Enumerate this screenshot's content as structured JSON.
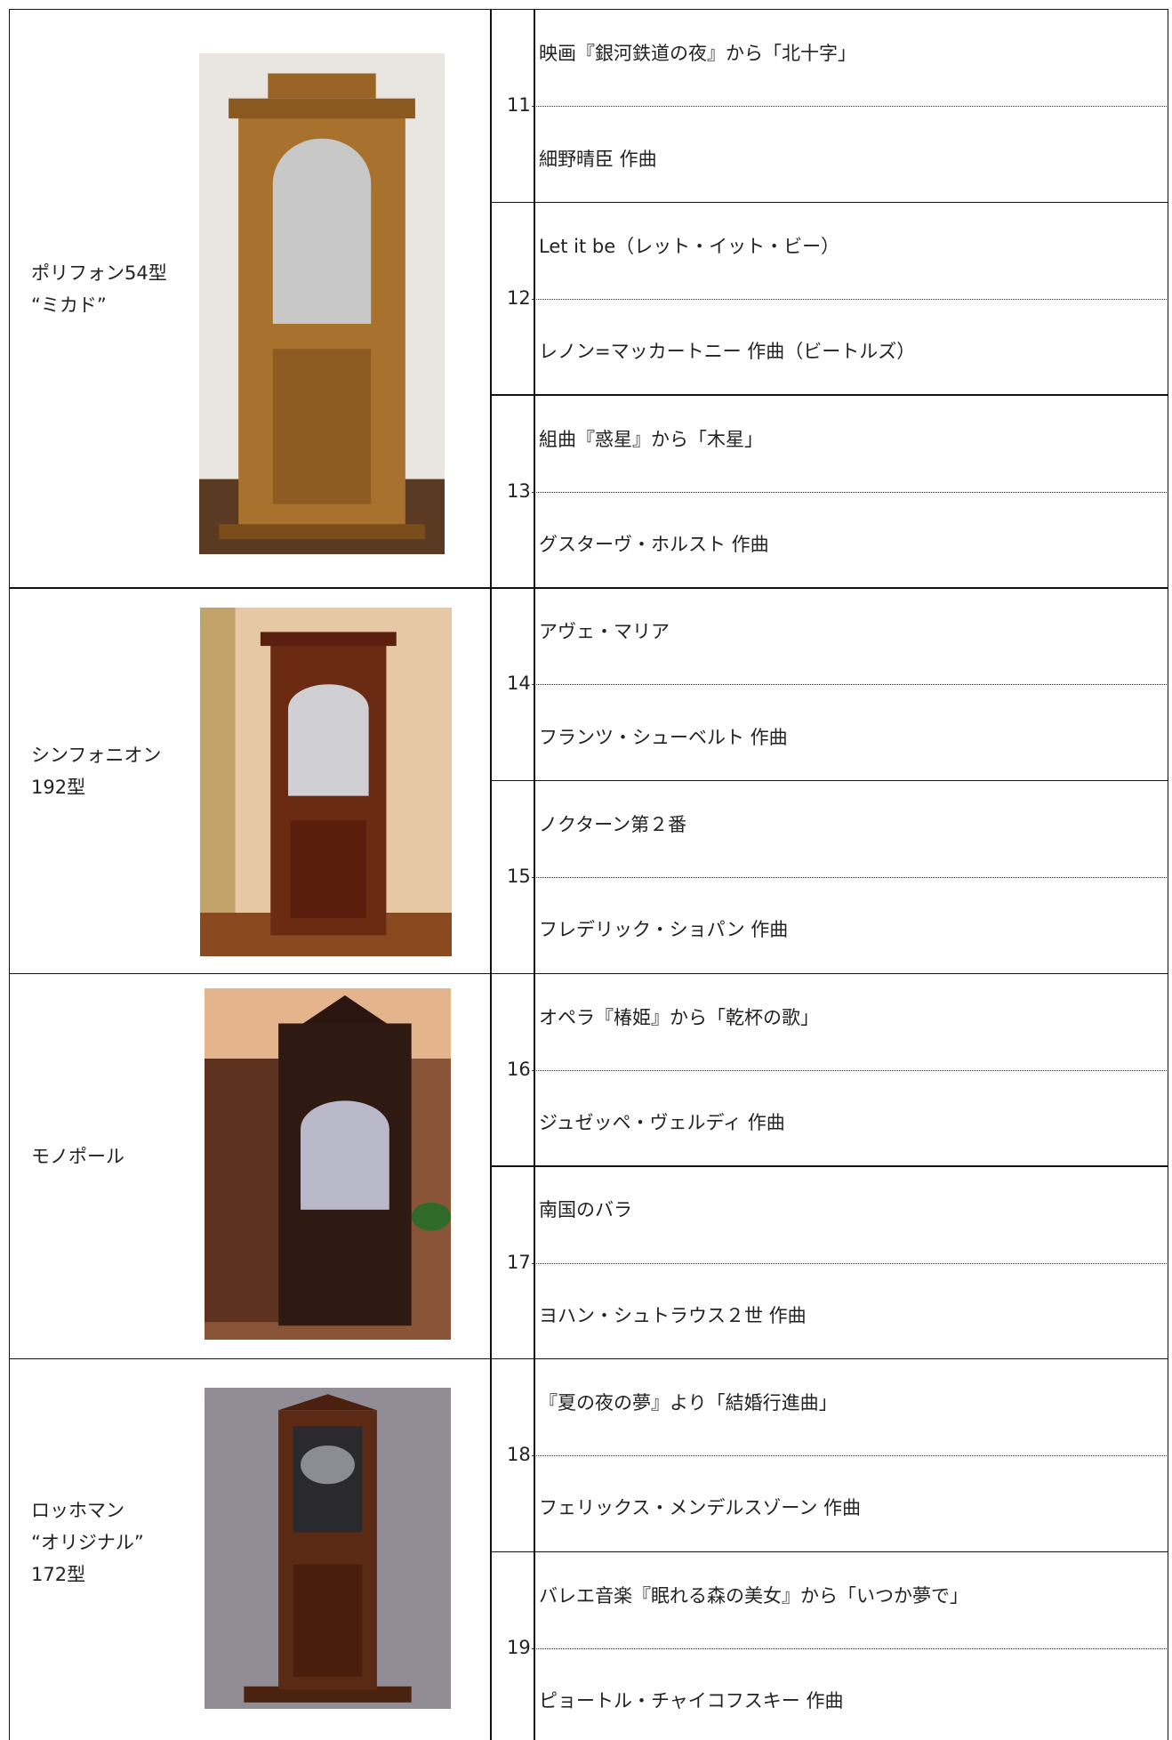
{
  "groups": [
    {
      "name_lines": [
        "ポリフォン54型",
        "“ミカド”"
      ],
      "songs": [
        {
          "number": "11",
          "title": "映画『銀河鉄道の夜』から「北十字」",
          "composer": "細野晴臣 作曲"
        },
        {
          "number": "12",
          "title": "Let it be（レット・イット・ビー）",
          "composer": "レノン=マッカートニー 作曲（ビートルズ）"
        },
        {
          "number": "13",
          "title": "組曲『惑星』から「木星」",
          "composer": "グスターヴ・ホルスト 作曲"
        }
      ]
    },
    {
      "name_lines": [
        "シンフォニオン",
        "192型"
      ],
      "songs": [
        {
          "number": "14",
          "title": "アヴェ・マリア",
          "composer": "フランツ・シューベルト 作曲"
        },
        {
          "number": "15",
          "title": "ノクターン第２番",
          "composer": "フレデリック・ショパン 作曲"
        }
      ]
    },
    {
      "name_lines": [
        "モノポール"
      ],
      "songs": [
        {
          "number": "16",
          "title": "オペラ『椿姫』から「乾杯の歌」",
          "composer": "ジュゼッペ・ヴェルディ 作曲"
        },
        {
          "number": "17",
          "title": "南国のバラ",
          "composer": "ヨハン・シュトラウス２世 作曲"
        }
      ]
    },
    {
      "name_lines": [
        "ロッホマン",
        "“オリジナル”",
        "172型"
      ],
      "songs": [
        {
          "number": "18",
          "title": "『夏の夜の夢』より「結婚行進曲」",
          "composer": "フェリックス・メンデルスゾーン 作曲"
        },
        {
          "number": "19",
          "title": "バレエ音楽『眠れる森の美女』から「いつか夢で」",
          "composer": "ピョートル・チャイコフスキー 作曲"
        }
      ]
    }
  ]
}
